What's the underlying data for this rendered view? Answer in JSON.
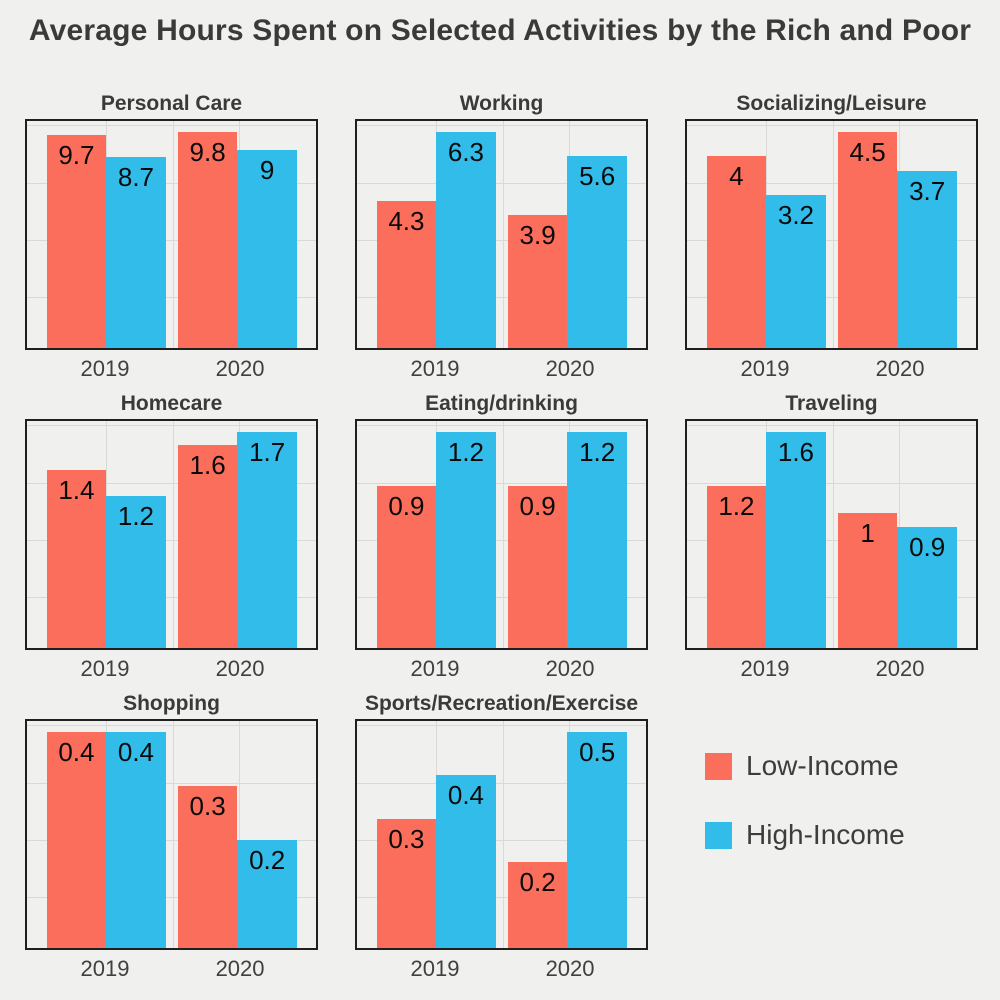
{
  "title": "Average Hours Spent on Selected Activities by the Rich and Poor",
  "colors": {
    "low_income": "#fa6e5b",
    "high_income": "#31bce9",
    "background": "#f0f0ee",
    "panel_border": "#1f1f1f",
    "gridline": "#d9d9d7",
    "title_text": "#3a3a3a",
    "label_text": "#0a0a0a"
  },
  "legend": {
    "items": [
      {
        "label": "Low-Income",
        "color": "#fa6e5b"
      },
      {
        "label": "High-Income",
        "color": "#31bce9"
      }
    ]
  },
  "chart_data": {
    "type": "bar",
    "title": "Average Hours Spent on Selected Activities by the Rich and Poor",
    "categories": [
      "2019",
      "2020"
    ],
    "series_names": [
      "Low-Income",
      "High-Income"
    ],
    "series_colors": [
      "#fa6e5b",
      "#31bce9"
    ],
    "xlabel": "",
    "ylabel": "",
    "grid": true,
    "y_axis_labels_shown": false,
    "bar_value_labels_shown": true,
    "legend_position": "bottom-right",
    "facets": [
      {
        "title": "Personal Care",
        "low_income": [
          9.7,
          9.8
        ],
        "high_income": [
          8.7,
          9
        ]
      },
      {
        "title": "Working",
        "low_income": [
          4.3,
          3.9
        ],
        "high_income": [
          6.3,
          5.6
        ]
      },
      {
        "title": "Socializing/Leisure",
        "low_income": [
          4,
          4.5
        ],
        "high_income": [
          3.2,
          3.7
        ]
      },
      {
        "title": "Homecare",
        "low_income": [
          1.4,
          1.6
        ],
        "high_income": [
          1.2,
          1.7
        ]
      },
      {
        "title": "Eating/drinking",
        "low_income": [
          0.9,
          0.9
        ],
        "high_income": [
          1.2,
          1.2
        ]
      },
      {
        "title": "Traveling",
        "low_income": [
          1.2,
          1
        ],
        "high_income": [
          1.6,
          0.9
        ]
      },
      {
        "title": "Shopping",
        "low_income": [
          0.4,
          0.3
        ],
        "high_income": [
          0.4,
          0.2
        ]
      },
      {
        "title": "Sports/Recreation/Exercise",
        "low_income": [
          0.3,
          0.2
        ],
        "high_income": [
          0.4,
          0.5
        ]
      }
    ]
  }
}
